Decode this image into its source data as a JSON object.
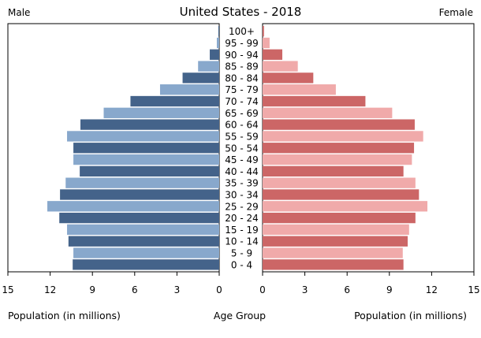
{
  "chart_data": {
    "type": "bar",
    "subtype": "population-pyramid",
    "title": "United States - 2018",
    "left_label": "Male",
    "right_label": "Female",
    "xlabel_left": "Population (in millions)",
    "xlabel_center": "Age Group",
    "xlabel_right": "Population (in millions)",
    "xlim": [
      0,
      15
    ],
    "ticks": [
      "15",
      "12",
      "9",
      "6",
      "3",
      "0"
    ],
    "ticks_right": [
      "0",
      "3",
      "6",
      "9",
      "12",
      "15"
    ],
    "grid": false,
    "colors": {
      "male_dark": "#44638a",
      "male_light": "#88a8cc",
      "female_dark": "#cc6666",
      "female_light": "#f0aaaa"
    },
    "categories": [
      "100+",
      "95 - 99",
      "90 - 94",
      "85 - 89",
      "80 - 84",
      "75 - 79",
      "70 - 74",
      "65 - 69",
      "60 - 64",
      "55 - 59",
      "50 - 54",
      "45 - 49",
      "40 - 44",
      "35 - 39",
      "30 - 34",
      "25 - 29",
      "20 - 24",
      "15 - 19",
      "10 - 14",
      "5 - 9",
      "0 - 4"
    ],
    "series": [
      {
        "name": "Male",
        "values": [
          0.06,
          0.17,
          0.67,
          1.5,
          2.6,
          4.2,
          6.3,
          8.2,
          9.85,
          10.8,
          10.35,
          10.35,
          9.9,
          10.9,
          11.3,
          12.2,
          11.35,
          10.8,
          10.7,
          10.35,
          10.4
        ]
      },
      {
        "name": "Female",
        "values": [
          0.1,
          0.5,
          1.4,
          2.5,
          3.6,
          5.2,
          7.3,
          9.2,
          10.8,
          11.4,
          10.75,
          10.6,
          10.0,
          10.85,
          11.1,
          11.7,
          10.85,
          10.4,
          10.3,
          9.95,
          10.0
        ]
      }
    ]
  }
}
